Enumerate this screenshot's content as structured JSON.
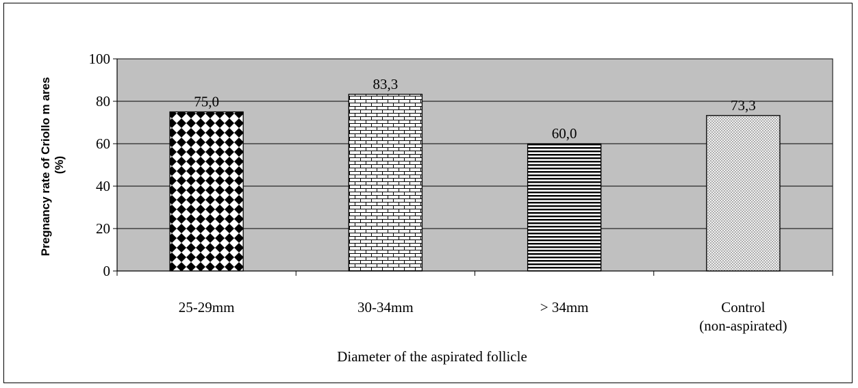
{
  "chart_data": {
    "type": "bar",
    "categories": [
      [
        "25-29mm"
      ],
      [
        "30-34mm"
      ],
      [
        "> 34mm"
      ],
      [
        "Control",
        "(non-aspirated)"
      ]
    ],
    "values": [
      75.0,
      83.3,
      60.0,
      73.3
    ],
    "data_labels": [
      "75,0",
      "83,3",
      "60,0",
      "73,3"
    ],
    "bar_patterns": [
      "diamond-checker",
      "brick",
      "horizontal-stripes",
      "fine-crosshatch"
    ],
    "ylabel_lines": [
      "Pregnancy rate of Criollo m ares",
      "(%)"
    ],
    "xlabel": "Diameter of the aspirated follicle",
    "ylim": [
      0,
      100
    ],
    "yticks": [
      0,
      20,
      40,
      60,
      80,
      100
    ],
    "ytick_labels": [
      "0",
      "20",
      "40",
      "60",
      "80",
      "100"
    ],
    "grid": true,
    "legend": "none",
    "colors": {
      "plot_background": "#c0c0c0",
      "gridline": "#000000",
      "bar_fill": "#ffffff",
      "bar_pattern": "#000000"
    }
  }
}
